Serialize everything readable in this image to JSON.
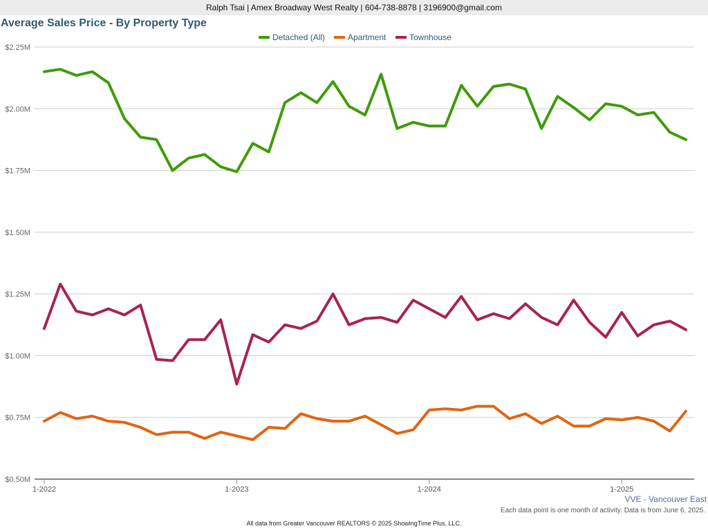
{
  "header": {
    "contact": "Ralph Tsai | Amex Broadway West Realty | 604-738-8878 | 3196900@gmail.com"
  },
  "region_label": "VVE - Vancouver East",
  "note": "Each data point is one month of activity. Data is from June 6, 2025.",
  "footer": "All data from Greater Vancouver REALTORS © 2025 ShowingTime Plus, LLC.",
  "chart_data": {
    "type": "line",
    "title": "Average Sales Price - By Property Type",
    "xlabel": "",
    "ylabel": "",
    "ylim": [
      500000,
      2250000
    ],
    "y_ticks": [
      {
        "value": 500000,
        "label": "$0.50M"
      },
      {
        "value": 750000,
        "label": "$0.75M"
      },
      {
        "value": 1000000,
        "label": "$1.00M"
      },
      {
        "value": 1250000,
        "label": "$1.25M"
      },
      {
        "value": 1500000,
        "label": "$1.50M"
      },
      {
        "value": 1750000,
        "label": "$1.75M"
      },
      {
        "value": 2000000,
        "label": "$2.00M"
      },
      {
        "value": 2250000,
        "label": "$2.25M"
      }
    ],
    "x": [
      "2022-01",
      "2022-02",
      "2022-03",
      "2022-04",
      "2022-05",
      "2022-06",
      "2022-07",
      "2022-08",
      "2022-09",
      "2022-10",
      "2022-11",
      "2022-12",
      "2023-01",
      "2023-02",
      "2023-03",
      "2023-04",
      "2023-05",
      "2023-06",
      "2023-07",
      "2023-08",
      "2023-09",
      "2023-10",
      "2023-11",
      "2023-12",
      "2024-01",
      "2024-02",
      "2024-03",
      "2024-04",
      "2024-05",
      "2024-06",
      "2024-07",
      "2024-08",
      "2024-09",
      "2024-10",
      "2024-11",
      "2024-12",
      "2025-01",
      "2025-02",
      "2025-03",
      "2025-04",
      "2025-05"
    ],
    "x_ticks": [
      {
        "x": "2022-01",
        "label": "1-2022"
      },
      {
        "x": "2023-01",
        "label": "1-2023"
      },
      {
        "x": "2024-01",
        "label": "1-2024"
      },
      {
        "x": "2025-01",
        "label": "1-2025"
      }
    ],
    "legend_position": "top-center",
    "grid": true,
    "series": [
      {
        "name": "Detached (All)",
        "color": "#3f9b0b",
        "values": [
          2150000,
          2160000,
          2135000,
          2150000,
          2105000,
          1960000,
          1885000,
          1875000,
          1750000,
          1800000,
          1815000,
          1765000,
          1745000,
          1860000,
          1825000,
          2025000,
          2065000,
          2025000,
          2110000,
          2010000,
          1975000,
          2140000,
          1920000,
          1945000,
          1930000,
          1930000,
          2095000,
          2010000,
          2090000,
          2100000,
          2080000,
          1920000,
          2050000,
          2005000,
          1955000,
          2020000,
          2010000,
          1975000,
          1985000,
          1905000,
          1875000
        ]
      },
      {
        "name": "Apartment",
        "color": "#e06512",
        "values": [
          735000,
          770000,
          745000,
          755000,
          735000,
          730000,
          710000,
          680000,
          690000,
          690000,
          665000,
          690000,
          675000,
          660000,
          710000,
          705000,
          765000,
          745000,
          735000,
          735000,
          755000,
          720000,
          685000,
          700000,
          780000,
          785000,
          780000,
          795000,
          795000,
          745000,
          765000,
          725000,
          755000,
          715000,
          715000,
          745000,
          740000,
          750000,
          735000,
          695000,
          775000
        ]
      },
      {
        "name": "Townhouse",
        "color": "#a8234f",
        "values": [
          1110000,
          1290000,
          1180000,
          1165000,
          1190000,
          1165000,
          1205000,
          985000,
          980000,
          1065000,
          1065000,
          1145000,
          885000,
          1085000,
          1055000,
          1125000,
          1110000,
          1140000,
          1250000,
          1125000,
          1150000,
          1155000,
          1135000,
          1225000,
          1190000,
          1155000,
          1240000,
          1145000,
          1170000,
          1150000,
          1210000,
          1155000,
          1125000,
          1225000,
          1135000,
          1075000,
          1175000,
          1080000,
          1125000,
          1140000,
          1105000
        ]
      }
    ]
  }
}
